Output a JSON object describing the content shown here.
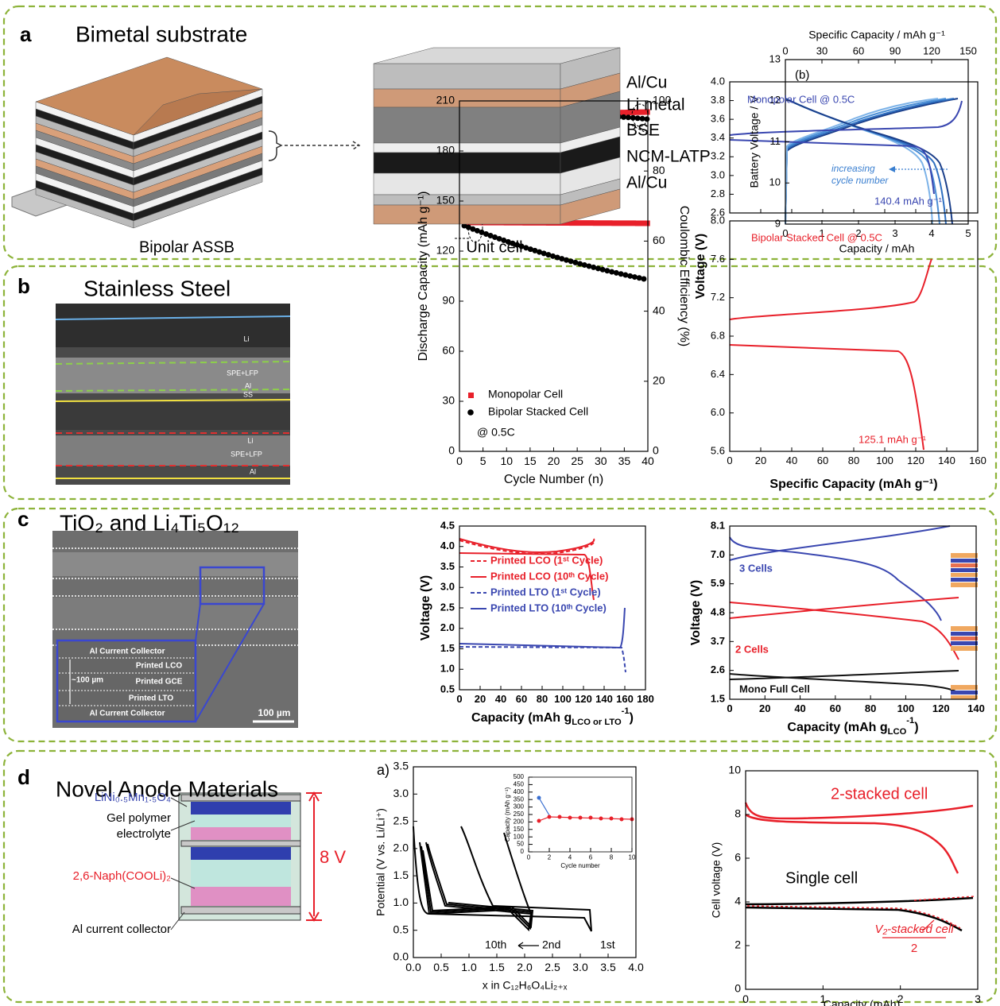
{
  "panels": [
    {
      "letter": "a",
      "title": "Bimetal substrate",
      "captions": [
        "Bipolar ASSB",
        "Unit cell"
      ],
      "layers": [
        "Al/Cu",
        "Li metal",
        "BSE",
        "NCM-LATP",
        "Al/Cu"
      ],
      "chart": {
        "tag": "(b)",
        "xlabel": "Capacity / mAh",
        "ylabel": "Battery Voltage / V",
        "x2label": "Specific Capacity / mAh g⁻¹",
        "xlim": [
          0,
          5
        ],
        "xticks": [
          0,
          1,
          2,
          3,
          4,
          5
        ],
        "x2lim": [
          0,
          150
        ],
        "x2ticks": [
          0,
          30,
          60,
          90,
          120,
          150
        ],
        "ylim": [
          9,
          13
        ],
        "yticks": [
          9,
          10,
          11,
          12,
          13
        ],
        "annotation": [
          "increasing",
          "cycle number"
        ]
      }
    },
    {
      "letter": "b",
      "title": "Stainless Steel",
      "image_labels": [
        "Li",
        "SPE+LFP",
        "Al",
        "SS",
        "Li",
        "SPE+LFP",
        "Al"
      ],
      "chart1": {
        "xlabel": "Cycle Number (n)",
        "ylabel": "Discharge Capacity (mAh g⁻¹)",
        "y2label": "Coulombic Efficiency (%)",
        "xlim": [
          0,
          40
        ],
        "xticks": [
          0,
          5,
          10,
          15,
          20,
          25,
          30,
          35,
          40
        ],
        "ylim": [
          0,
          210
        ],
        "yticks": [
          0,
          30,
          60,
          90,
          120,
          150,
          180,
          210
        ],
        "y2lim": [
          0,
          100
        ],
        "y2ticks": [
          0,
          20,
          40,
          60,
          80,
          100
        ],
        "legend": [
          "Monopolar Cell",
          "Bipolar Stacked Cell"
        ],
        "annotation": "@ 0.5C"
      },
      "chart2": {
        "xlabel": "Specific Capacity (mAh g⁻¹)",
        "ylabel": "Voltage (V)",
        "xlim": [
          0,
          160
        ],
        "xticks": [
          0,
          20,
          40,
          60,
          80,
          100,
          120,
          140,
          160
        ],
        "top": {
          "ylim": [
            2.6,
            4.0
          ],
          "yticks": [
            2.6,
            2.8,
            {
              "value": 3,
              "label": "3.0"
            },
            3.2,
            3.4,
            3.6,
            3.8,
            {
              "value": 4,
              "label": "4.0"
            }
          ],
          "annotations": [
            "Monopolar Cell  @ 0.5C",
            "140.4 mAh g⁻¹"
          ]
        },
        "bottom": {
          "ylim": [
            5.6,
            8.0
          ],
          "yticks": [
            5.6,
            {
              "value": 6,
              "label": "6.0"
            },
            6.4,
            6.8,
            7.2,
            7.6,
            {
              "value": 8,
              "label": "8.0"
            }
          ],
          "annotations": [
            "Bipolar Stacked Cell  @ 0.5C",
            "125.1 mAh g⁻¹"
          ]
        }
      }
    },
    {
      "letter": "c",
      "title": "TiO₂ and Li₄Ti₅O₁₂",
      "image_labels": [
        "Al Current Collector",
        "Printed LCO",
        "~100 µm",
        "Printed GCE",
        "Printed LTO",
        "Al Current Collector",
        "100 µm"
      ],
      "chart1": {
        "xlabel": {
          "main": "Capacity (mAh g",
          "sub": "LCO or LTO",
          "sup": "-1",
          "tail": ")"
        },
        "ylabel": "Voltage (V)",
        "xlim": [
          0,
          180
        ],
        "xticks": [
          0,
          20,
          40,
          60,
          80,
          100,
          120,
          140,
          160,
          180
        ],
        "ylim": [
          0.5,
          4.5
        ],
        "yticks": [
          0.5,
          {
            "value": 1,
            "label": "1.0"
          },
          1.5,
          {
            "value": 2,
            "label": "2.0"
          },
          2.5,
          {
            "value": 3,
            "label": "3.0"
          },
          3.5,
          {
            "value": 4,
            "label": "4.0"
          },
          4.5
        ],
        "legend": [
          "Printed LCO (1ˢᵗ Cycle)",
          "Printed LCO (10ᵗʰ Cycle)",
          "Printed LTO (1ˢᵗ Cycle)",
          "Printed LTO (10ᵗʰ Cycle)"
        ]
      },
      "chart2": {
        "xlabel": {
          "main": "Capacity (mAh g",
          "sub": "LCO",
          "sup": "-1",
          "tail": ")"
        },
        "ylabel": "Voltage (V)",
        "xlim": [
          0,
          140
        ],
        "xticks": [
          0,
          20,
          40,
          60,
          80,
          100,
          120,
          140
        ],
        "ylim": [
          1.5,
          8.1
        ],
        "yticks": [
          1.5,
          2.6,
          3.7,
          4.8,
          5.9,
          {
            "value": 7,
            "label": "7.0"
          },
          8.1
        ],
        "annotations": [
          "3 Cells",
          "2 Cells",
          "Mono Full Cell"
        ]
      }
    },
    {
      "letter": "d",
      "title": "Novel Anode Materials",
      "diagram": {
        "labels": [
          "LiNi₀.₅Mn₁.₅O₄",
          [
            "Gel polymer",
            "electrolyte"
          ],
          "2,6-Naph(COOLi)₂",
          "Al current collector"
        ],
        "voltage": "8 V"
      },
      "chart1": {
        "tag": "a)",
        "xlabel": "x in C₁₂H₆O₄Li₂₊ₓ",
        "ylabel": "Potential (V vs. Li/Li⁺)",
        "xlim": [
          0,
          4
        ],
        "xticks": [
          {
            "value": 0,
            "label": "0.0"
          },
          0.5,
          {
            "value": 1,
            "label": "1.0"
          },
          1.5,
          {
            "value": 2,
            "label": "2.0"
          },
          2.5,
          {
            "value": 3,
            "label": "3.0"
          },
          3.5,
          {
            "value": 4,
            "label": "4.0"
          }
        ],
        "ylim": [
          0,
          3.5
        ],
        "yticks": [
          {
            "value": 0,
            "label": "0.0"
          },
          0.5,
          {
            "value": 1,
            "label": "1.0"
          },
          1.5,
          {
            "value": 2,
            "label": "2.0"
          },
          2.5,
          {
            "value": 3,
            "label": "3.0"
          },
          3.5
        ],
        "annotations": [
          "10th",
          "2nd",
          "1st"
        ],
        "inset": {
          "xlabel": "Cycle number",
          "ylabel": "Capacity (mAh g⁻¹)",
          "xlim": [
            0,
            10
          ],
          "xticks": [
            0,
            2,
            4,
            6,
            8,
            10
          ],
          "ylim": [
            0,
            500
          ],
          "yticks": [
            0,
            50,
            100,
            150,
            200,
            250,
            300,
            350,
            400,
            450,
            500
          ]
        }
      },
      "chart2": {
        "xlabel": "Capacity (mAh)",
        "ylabel": "Cell voltage (V)",
        "xlim": [
          0,
          3
        ],
        "xticks": [
          0,
          1,
          2,
          3
        ],
        "ylim": [
          0,
          10
        ],
        "yticks": [
          0,
          2,
          4,
          6,
          8,
          10
        ],
        "annotations": [
          "2-stacked cell",
          "Single cell"
        ],
        "fraction": {
          "numerator": "V₂-stacked cell",
          "denominator": "2"
        }
      }
    }
  ]
}
